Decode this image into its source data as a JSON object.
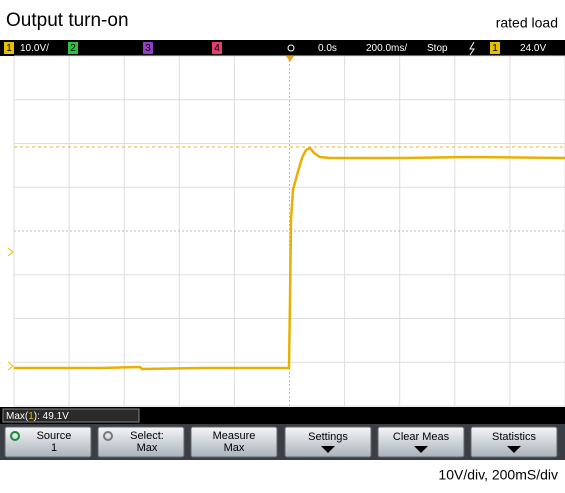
{
  "header": {
    "title": "Output turn-on",
    "condition": "rated load"
  },
  "status_bar": {
    "ch1": "1",
    "ch1_scale": "10.0V/",
    "ch2": "2",
    "ch3": "3",
    "ch4": "4",
    "delay": "0.0s",
    "timebase": "200.0ms/",
    "mode": "Stop",
    "trigger_channel": "1",
    "trigger_level": "24.0V"
  },
  "measurement": {
    "label": "Max(",
    "channel": "1",
    "value": "): 49.1V"
  },
  "softkeys": [
    {
      "label": "Source",
      "value": "1"
    },
    {
      "label": "Select:",
      "value": "Max"
    },
    {
      "label": "Measure",
      "value": "Max"
    },
    {
      "label": "Settings"
    },
    {
      "label": "Clear Meas"
    },
    {
      "label": "Statistics"
    }
  ],
  "footer": "10V/div, 200mS/div"
}
